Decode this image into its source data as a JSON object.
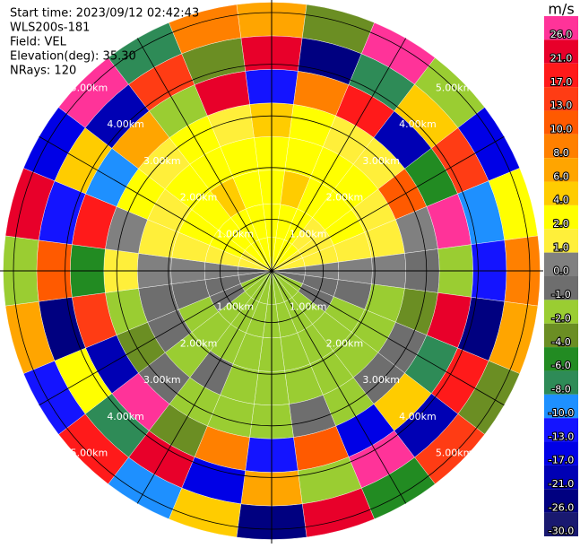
{
  "chart_data": {
    "type": "ppi",
    "header": [
      "Start time: 2023/09/12 02:42:43",
      "WLS200s-181",
      "Field: VEL",
      "Elevation(deg): 35.30",
      "NRays: 120"
    ],
    "unit": "m/s",
    "azimuths": [
      0,
      15,
      30,
      45,
      60,
      75,
      90,
      105,
      120,
      135,
      150,
      165,
      180,
      195,
      210,
      225,
      240,
      255,
      270,
      285,
      300,
      315,
      330,
      345
    ],
    "range_edges": [
      0,
      0.65,
      1.3,
      1.95,
      2.6,
      3.25,
      3.9,
      4.55,
      5.2
    ],
    "values": [
      [
        2,
        2,
        2,
        2,
        4,
        -13,
        21,
        6
      ],
      [
        2,
        2,
        4,
        2,
        2,
        8,
        -26,
        -4
      ],
      [
        2,
        2,
        2,
        2,
        1,
        17,
        -8,
        26
      ],
      [
        2,
        1,
        2,
        2,
        1,
        -21,
        4,
        -2
      ],
      [
        1,
        1,
        2,
        1,
        10,
        -6,
        13,
        -17
      ],
      [
        1,
        1,
        1,
        1,
        0,
        26,
        -10,
        2
      ],
      [
        0,
        0,
        0,
        0,
        -1,
        -2,
        -13,
        8
      ],
      [
        -1,
        -1,
        -1,
        -2,
        -4,
        21,
        -26,
        6
      ],
      [
        -2,
        -1,
        -2,
        -2,
        -1,
        -8,
        17,
        -4
      ],
      [
        -2,
        -2,
        -2,
        -2,
        -1,
        4,
        -21,
        13
      ],
      [
        -2,
        -2,
        -2,
        -2,
        -2,
        -17,
        26,
        -6
      ],
      [
        -2,
        -2,
        -2,
        -2,
        -1,
        10,
        -2,
        21
      ],
      [
        -2,
        -2,
        -2,
        -2,
        -2,
        -13,
        6,
        -26
      ],
      [
        -2,
        -2,
        -2,
        -2,
        -2,
        8,
        -17,
        4
      ],
      [
        -2,
        -2,
        -2,
        -1,
        -2,
        -4,
        21,
        -10
      ],
      [
        -2,
        -2,
        -2,
        -2,
        -1,
        26,
        -8,
        17
      ],
      [
        -2,
        -1,
        -2,
        -1,
        -4,
        -21,
        2,
        -13
      ],
      [
        -1,
        -1,
        -1,
        -1,
        -2,
        13,
        -26,
        6
      ],
      [
        0,
        0,
        0,
        0,
        1,
        -6,
        10,
        -2
      ],
      [
        1,
        1,
        1,
        1,
        0,
        17,
        -13,
        21
      ],
      [
        1,
        2,
        2,
        1,
        2,
        -10,
        4,
        -17
      ],
      [
        2,
        2,
        2,
        2,
        1,
        6,
        -21,
        26
      ],
      [
        2,
        2,
        4,
        2,
        2,
        -2,
        13,
        -8
      ],
      [
        2,
        2,
        2,
        2,
        1,
        21,
        -4,
        8
      ]
    ],
    "rings": [
      {
        "value": 1,
        "label": "1.00km"
      },
      {
        "value": 2,
        "label": "2.00km"
      },
      {
        "value": 3,
        "label": "3.00km"
      },
      {
        "value": 4,
        "label": "4.00km"
      },
      {
        "value": 5,
        "label": "5.00km"
      }
    ],
    "colorbar_ticks": [
      {
        "value": 26,
        "label": "26.0"
      },
      {
        "value": 21,
        "label": "21.0"
      },
      {
        "value": 17,
        "label": "17.0"
      },
      {
        "value": 13,
        "label": "13.0"
      },
      {
        "value": 10,
        "label": "10.0"
      },
      {
        "value": 8,
        "label": "8.0"
      },
      {
        "value": 6,
        "label": "6.0"
      },
      {
        "value": 4,
        "label": "4.0"
      },
      {
        "value": 2,
        "label": "2.0"
      },
      {
        "value": 1,
        "label": "1.0"
      },
      {
        "value": 0,
        "label": "0.0"
      },
      {
        "value": -1,
        "label": "-1.0"
      },
      {
        "value": -2,
        "label": "-2.0"
      },
      {
        "value": -4,
        "label": "-4.0"
      },
      {
        "value": -6,
        "label": "-6.0"
      },
      {
        "value": -8,
        "label": "-8.0"
      },
      {
        "value": -10,
        "label": "-10.0"
      },
      {
        "value": -13,
        "label": "-13.0"
      },
      {
        "value": -17,
        "label": "-17.0"
      },
      {
        "value": -21,
        "label": "-21.0"
      },
      {
        "value": -26,
        "label": "-26.0"
      },
      {
        "value": -30,
        "label": "-30.0"
      }
    ],
    "colorbar_colors": [
      "#ff3399",
      "#e8002a",
      "#ff1a1a",
      "#ff3c14",
      "#ff5a00",
      "#ff8000",
      "#ffa500",
      "#ffcc00",
      "#ffff00",
      "#ffef3a",
      "#808080",
      "#6e6e6e",
      "#9acd32",
      "#6b8e23",
      "#228b22",
      "#2e8b57",
      "#1e90ff",
      "#1414ff",
      "#0000e6",
      "#0000b4",
      "#000080",
      "#191970"
    ]
  }
}
